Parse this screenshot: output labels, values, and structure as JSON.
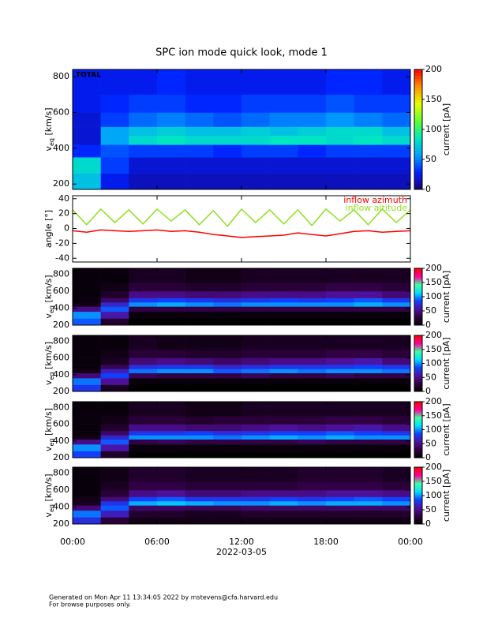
{
  "title": "SPC ion mode quick look, mode 1",
  "footer": [
    "Generated on Mon Apr 11 13:34:05 2022 by mstevens@cfa.harvard.edu",
    "For browse purposes only."
  ],
  "chart_data": [
    {
      "type": "heatmap",
      "annotation": "TOTAL",
      "ylabel": {
        "main": "v",
        "sub": "eq",
        "rest": " [km/s]"
      },
      "xlim": [
        0,
        24
      ],
      "ylim": [
        170,
        840
      ],
      "yticks": [
        200,
        400,
        600,
        800
      ],
      "x_bins": [
        0,
        2,
        4,
        6,
        8,
        10,
        12,
        14,
        16,
        18,
        20,
        22,
        24
      ],
      "y_bins": [
        170,
        260,
        350,
        420,
        470,
        520,
        600,
        700,
        840
      ],
      "cmap": [
        "#1a0070",
        "#0020ff",
        "#00a0ff",
        "#00e8c0",
        "#60ff30",
        "#e8ff00",
        "#ff9000",
        "#ff0000"
      ],
      "colorbar": {
        "clim": [
          0,
          200
        ],
        "ticks": [
          0,
          50,
          100,
          150,
          200
        ],
        "label": "current [pA]"
      },
      "z": [
        [
          70,
          25,
          15,
          15,
          15,
          15,
          15,
          15,
          15,
          15,
          15,
          15
        ],
        [
          80,
          35,
          20,
          20,
          20,
          20,
          20,
          20,
          20,
          20,
          20,
          20
        ],
        [
          30,
          40,
          35,
          35,
          35,
          30,
          35,
          35,
          30,
          35,
          35,
          35
        ],
        [
          20,
          60,
          80,
          85,
          80,
          80,
          80,
          85,
          85,
          80,
          85,
          80
        ],
        [
          20,
          60,
          70,
          75,
          70,
          70,
          75,
          70,
          75,
          80,
          80,
          70
        ],
        [
          20,
          35,
          45,
          50,
          45,
          40,
          45,
          50,
          50,
          55,
          50,
          45
        ],
        [
          25,
          30,
          35,
          35,
          30,
          30,
          35,
          35,
          35,
          40,
          35,
          35
        ],
        [
          25,
          25,
          25,
          30,
          25,
          25,
          25,
          25,
          25,
          30,
          30,
          25
        ]
      ]
    },
    {
      "type": "line",
      "ylabel": "angle [°]",
      "xlim": [
        0,
        24
      ],
      "ylim": [
        -45,
        44
      ],
      "yticks": [
        -40,
        -20,
        0,
        20,
        40
      ],
      "x": [
        0,
        1,
        2,
        3,
        4,
        5,
        6,
        7,
        8,
        9,
        10,
        11,
        12,
        13,
        14,
        15,
        16,
        17,
        18,
        19,
        20,
        21,
        22,
        23,
        24
      ],
      "series": [
        {
          "name": "inflow altitude",
          "color": "#90e020",
          "values": [
            25,
            5,
            26,
            8,
            25,
            6,
            26,
            10,
            25,
            5,
            24,
            3,
            26,
            8,
            25,
            6,
            25,
            4,
            26,
            10,
            25,
            5,
            26,
            8,
            25
          ]
        },
        {
          "name": "inflow azimuth",
          "color": "#ff0000",
          "values": [
            -3,
            -5,
            -2,
            -3,
            -4,
            -3,
            -2,
            -4,
            -3,
            -5,
            -8,
            -10,
            -12,
            -11,
            -10,
            -9,
            -6,
            -8,
            -10,
            -7,
            -4,
            -3,
            -5,
            -4,
            -3
          ]
        }
      ]
    },
    {
      "type": "heatmap",
      "ylabel": {
        "main": "v",
        "sub": "eq",
        "rest": " [km/s]"
      },
      "xlim": [
        0,
        24
      ],
      "ylim": [
        200,
        870
      ],
      "yticks": [
        200,
        400,
        600,
        800
      ],
      "x_bins": [
        0,
        2,
        4,
        6,
        8,
        10,
        12,
        14,
        16,
        18,
        20,
        22,
        24
      ],
      "y_bins": [
        200,
        280,
        360,
        420,
        470,
        520,
        600,
        700,
        870
      ],
      "cmap": [
        "#000000",
        "#300040",
        "#5010a0",
        "#1040ff",
        "#00e0ff",
        "#40ffa0",
        "#ff00a0",
        "#ff0000"
      ],
      "colorbar": {
        "clim": [
          0,
          200
        ],
        "ticks": [
          0,
          50,
          100,
          150,
          200
        ],
        "label": "current [pA]"
      },
      "z": [
        [
          90,
          20,
          0,
          0,
          0,
          0,
          0,
          0,
          0,
          0,
          0,
          0
        ],
        [
          100,
          60,
          5,
          5,
          5,
          5,
          5,
          5,
          5,
          5,
          5,
          5
        ],
        [
          50,
          90,
          30,
          30,
          30,
          30,
          30,
          30,
          30,
          30,
          30,
          30
        ],
        [
          10,
          70,
          100,
          105,
          100,
          95,
          100,
          100,
          100,
          100,
          105,
          100
        ],
        [
          5,
          40,
          80,
          85,
          80,
          75,
          80,
          85,
          80,
          85,
          90,
          80
        ],
        [
          5,
          20,
          50,
          50,
          45,
          45,
          50,
          50,
          50,
          55,
          55,
          45
        ],
        [
          5,
          10,
          25,
          25,
          20,
          20,
          25,
          25,
          25,
          30,
          30,
          25
        ],
        [
          5,
          5,
          15,
          15,
          10,
          10,
          15,
          15,
          15,
          15,
          15,
          15
        ]
      ]
    },
    {
      "type": "heatmap",
      "ylabel": {
        "main": "v",
        "sub": "eq",
        "rest": " [km/s]"
      },
      "xlim": [
        0,
        24
      ],
      "ylim": [
        200,
        870
      ],
      "yticks": [
        200,
        400,
        600,
        800
      ],
      "x_bins": [
        0,
        2,
        4,
        6,
        8,
        10,
        12,
        14,
        16,
        18,
        20,
        22,
        24
      ],
      "y_bins": [
        200,
        280,
        360,
        420,
        470,
        520,
        600,
        700,
        870
      ],
      "cmap": [
        "#000000",
        "#300040",
        "#5010a0",
        "#1040ff",
        "#00e0ff",
        "#40ffa0",
        "#ff00a0",
        "#ff0000"
      ],
      "colorbar": {
        "clim": [
          0,
          200
        ],
        "ticks": [
          0,
          50,
          100,
          150,
          200
        ],
        "label": "current [pA]"
      },
      "z": [
        [
          80,
          15,
          0,
          0,
          0,
          0,
          0,
          0,
          0,
          0,
          0,
          0
        ],
        [
          95,
          55,
          5,
          5,
          5,
          5,
          5,
          5,
          5,
          5,
          5,
          5
        ],
        [
          45,
          85,
          35,
          30,
          30,
          30,
          35,
          30,
          30,
          35,
          30,
          30
        ],
        [
          10,
          65,
          95,
          100,
          100,
          90,
          95,
          100,
          95,
          100,
          100,
          95
        ],
        [
          5,
          35,
          75,
          80,
          80,
          70,
          75,
          80,
          80,
          80,
          85,
          80
        ],
        [
          5,
          15,
          45,
          50,
          45,
          40,
          45,
          50,
          50,
          55,
          60,
          45
        ],
        [
          5,
          10,
          25,
          25,
          20,
          20,
          25,
          25,
          25,
          30,
          30,
          25
        ],
        [
          5,
          5,
          15,
          10,
          10,
          10,
          15,
          15,
          15,
          15,
          15,
          15
        ]
      ]
    },
    {
      "type": "heatmap",
      "ylabel": {
        "main": "v",
        "sub": "eq",
        "rest": " [km/s]"
      },
      "xlim": [
        0,
        24
      ],
      "ylim": [
        200,
        870
      ],
      "yticks": [
        200,
        400,
        600,
        800
      ],
      "x_bins": [
        0,
        2,
        4,
        6,
        8,
        10,
        12,
        14,
        16,
        18,
        20,
        22,
        24
      ],
      "y_bins": [
        200,
        280,
        360,
        420,
        470,
        520,
        600,
        700,
        870
      ],
      "cmap": [
        "#000000",
        "#300040",
        "#5010a0",
        "#1040ff",
        "#00e0ff",
        "#40ffa0",
        "#ff00a0",
        "#ff0000"
      ],
      "colorbar": {
        "clim": [
          0,
          200
        ],
        "ticks": [
          0,
          50,
          100,
          150,
          200
        ],
        "label": "current [pA]"
      },
      "z": [
        [
          85,
          20,
          0,
          0,
          0,
          0,
          0,
          0,
          0,
          0,
          0,
          0
        ],
        [
          100,
          60,
          5,
          5,
          5,
          5,
          5,
          5,
          5,
          5,
          5,
          5
        ],
        [
          50,
          90,
          30,
          35,
          30,
          30,
          30,
          30,
          35,
          30,
          30,
          30
        ],
        [
          10,
          70,
          100,
          100,
          100,
          95,
          100,
          105,
          100,
          105,
          100,
          100
        ],
        [
          5,
          40,
          80,
          80,
          85,
          75,
          80,
          85,
          85,
          90,
          85,
          80
        ],
        [
          5,
          20,
          50,
          50,
          45,
          45,
          50,
          55,
          50,
          55,
          60,
          50
        ],
        [
          5,
          10,
          25,
          25,
          20,
          25,
          25,
          25,
          25,
          30,
          30,
          25
        ],
        [
          5,
          5,
          15,
          15,
          10,
          10,
          15,
          15,
          15,
          15,
          15,
          15
        ]
      ]
    },
    {
      "type": "heatmap",
      "ylabel": {
        "main": "v",
        "sub": "eq",
        "rest": " [km/s]"
      },
      "xlim": [
        0,
        24
      ],
      "ylim": [
        200,
        870
      ],
      "yticks": [
        200,
        400,
        600,
        800
      ],
      "x_bins": [
        0,
        2,
        4,
        6,
        8,
        10,
        12,
        14,
        16,
        18,
        20,
        22,
        24
      ],
      "y_bins": [
        200,
        280,
        360,
        420,
        470,
        520,
        600,
        700,
        870
      ],
      "cmap": [
        "#000000",
        "#300040",
        "#5010a0",
        "#1040ff",
        "#00e0ff",
        "#40ffa0",
        "#ff00a0",
        "#ff0000"
      ],
      "colorbar": {
        "clim": [
          0,
          200
        ],
        "ticks": [
          0,
          50,
          100,
          150,
          200
        ],
        "label": "current [pA]"
      },
      "z": [
        [
          75,
          25,
          10,
          10,
          10,
          10,
          10,
          10,
          10,
          10,
          10,
          10
        ],
        [
          95,
          65,
          20,
          20,
          15,
          15,
          20,
          20,
          20,
          20,
          20,
          20
        ],
        [
          45,
          90,
          40,
          40,
          35,
          35,
          40,
          40,
          40,
          40,
          40,
          40
        ],
        [
          15,
          80,
          105,
          110,
          105,
          100,
          100,
          105,
          100,
          105,
          105,
          100
        ],
        [
          10,
          45,
          85,
          90,
          80,
          80,
          80,
          85,
          80,
          85,
          90,
          85
        ],
        [
          5,
          25,
          50,
          55,
          45,
          45,
          50,
          50,
          50,
          55,
          55,
          50
        ],
        [
          5,
          15,
          30,
          30,
          25,
          25,
          25,
          25,
          30,
          30,
          30,
          25
        ],
        [
          5,
          10,
          20,
          20,
          15,
          15,
          15,
          15,
          20,
          20,
          20,
          15
        ]
      ],
      "xticks": [
        {
          "value": 0,
          "label": "00:00"
        },
        {
          "value": 6,
          "label": "06:00"
        },
        {
          "value": 12,
          "label": "12:00"
        },
        {
          "value": 18,
          "label": "18:00"
        },
        {
          "value": 24,
          "label": "00:00"
        }
      ],
      "xlabel": "2022-03-05"
    }
  ]
}
